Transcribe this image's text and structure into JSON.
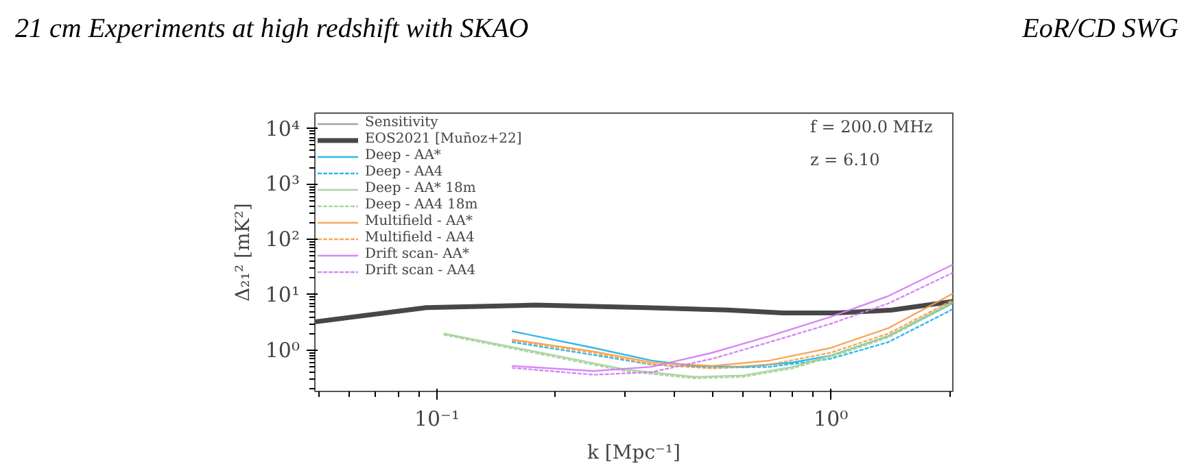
{
  "chart_data": {
    "type": "line",
    "title": "21 cm Experiments at high redshift with SKAO",
    "annotations": [
      "EoR/CD SWG",
      "f = 200.0 MHz",
      "z = 6.10"
    ],
    "xlabel": "k [Mpc⁻¹]",
    "ylabel": "Δ₂₁² [mK²]",
    "log": "xy",
    "xlim": [
      0.049,
      2.04
    ],
    "ylim": [
      0.18,
      19000
    ],
    "xticks": [
      {
        "value": 0.1,
        "label": "10⁻¹"
      },
      {
        "value": 1,
        "label": "10⁰"
      }
    ],
    "yticks": [
      {
        "value": 1,
        "label": "10⁰"
      },
      {
        "value": 10,
        "label": "10¹"
      },
      {
        "value": 100,
        "label": "10²"
      },
      {
        "value": 1000,
        "label": "10³"
      },
      {
        "value": 10000,
        "label": "10⁴"
      }
    ],
    "grid": false,
    "legend": "top left",
    "series": [
      {
        "name": "Sensitivity",
        "color": "#999999",
        "line_style": "solid"
      },
      {
        "name": "EOS2021 [Muñoz+22]",
        "color": "#333333",
        "line_style": "solid",
        "x": [
          0.049,
          0.094,
          0.178,
          0.338,
          0.548,
          0.755,
          1.04,
          1.43,
          2.04
        ],
        "values": [
          3.25,
          5.85,
          6.5,
          5.85,
          5.3,
          4.7,
          4.7,
          5.3,
          7.6
        ]
      },
      {
        "name": "Deep - AA*",
        "color": "#1bb0e8",
        "line_style": "solid",
        "x": [
          0.155,
          0.25,
          0.35,
          0.45,
          0.6,
          0.8,
          1.0,
          1.4,
          2.04
        ],
        "values": [
          2.2,
          1.1,
          0.65,
          0.52,
          0.5,
          0.6,
          0.8,
          1.8,
          7
        ]
      },
      {
        "name": "Deep - AA4",
        "color": "#1bb0e8",
        "line_style": "dashed",
        "x": [
          0.155,
          0.25,
          0.35,
          0.5,
          0.7,
          1.0,
          1.4,
          2.04
        ],
        "values": [
          1.4,
          0.82,
          0.55,
          0.48,
          0.5,
          0.7,
          1.4,
          5.5
        ]
      },
      {
        "name": "Deep - AA* 18m",
        "color": "#a4d09a",
        "line_style": "solid",
        "x": [
          0.104,
          0.2,
          0.3,
          0.45,
          0.6,
          0.8,
          1.0,
          1.4,
          2.04
        ],
        "values": [
          2.0,
          0.8,
          0.45,
          0.33,
          0.35,
          0.5,
          0.8,
          1.8,
          7.5
        ]
      },
      {
        "name": "Deep - AA4 18m",
        "color": "#a4d09a",
        "line_style": "dashed",
        "x": [
          0.104,
          0.2,
          0.3,
          0.45,
          0.6,
          0.8,
          1.0,
          1.4,
          2.04
        ],
        "values": [
          1.9,
          0.75,
          0.42,
          0.31,
          0.33,
          0.47,
          0.75,
          1.7,
          7
        ]
      },
      {
        "name": "Multifield - AA*",
        "color": "#f5a04a",
        "line_style": "solid",
        "x": [
          0.155,
          0.25,
          0.35,
          0.5,
          0.7,
          1.0,
          1.4,
          2.04
        ],
        "values": [
          1.55,
          0.95,
          0.6,
          0.52,
          0.65,
          1.1,
          2.5,
          10.5
        ]
      },
      {
        "name": "Multifield - AA4",
        "color": "#f5a04a",
        "line_style": "dashed",
        "x": [
          0.155,
          0.25,
          0.35,
          0.5,
          0.7,
          1.0,
          1.4,
          2.04
        ],
        "values": [
          1.5,
          0.9,
          0.55,
          0.47,
          0.55,
          0.9,
          2.0,
          8
        ]
      },
      {
        "name": "Drift scan- AA*",
        "color": "#d27af5",
        "line_style": "solid",
        "x": [
          0.155,
          0.25,
          0.35,
          0.5,
          0.7,
          1.0,
          1.4,
          2.04
        ],
        "values": [
          0.52,
          0.42,
          0.5,
          0.9,
          1.8,
          4.0,
          9.5,
          35
        ]
      },
      {
        "name": "Drift scan - AA4",
        "color": "#d27af5",
        "line_style": "dashed",
        "x": [
          0.155,
          0.25,
          0.35,
          0.5,
          0.7,
          1.0,
          1.4,
          2.04
        ],
        "values": [
          0.48,
          0.36,
          0.4,
          0.7,
          1.4,
          3.0,
          7,
          25
        ]
      }
    ]
  }
}
